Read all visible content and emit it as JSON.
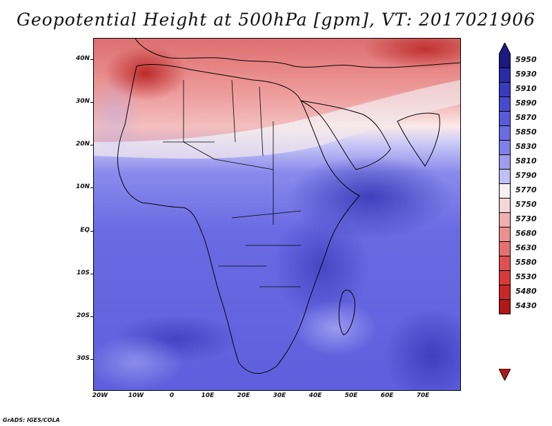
{
  "title": "Geopotential Height at 500hPa [gpm], VT: 2017021906",
  "credit": "GrADS: IGES/COLA",
  "map": {
    "lat_labels": [
      "40N",
      "30N",
      "20N",
      "10N",
      "EQ",
      "10S",
      "20S",
      "30S"
    ],
    "lon_labels": [
      "20W",
      "10W",
      "0",
      "10E",
      "20E",
      "30E",
      "40E",
      "50E",
      "60E",
      "70E"
    ]
  },
  "colorbar": {
    "levels": [
      "5950",
      "5930",
      "5910",
      "5890",
      "5870",
      "5850",
      "5830",
      "5810",
      "5790",
      "5770",
      "5750",
      "5730",
      "5680",
      "5630",
      "5580",
      "5530",
      "5480",
      "5430"
    ],
    "colors": [
      "#1a1a80",
      "#2a2aa8",
      "#3a3ac0",
      "#4a4ad0",
      "#5a5adc",
      "#6b6be3",
      "#8080ea",
      "#9c9cf0",
      "#c0c0f7",
      "#f6f0f0",
      "#f5d6d6",
      "#f0b0b0",
      "#eb9090",
      "#e67070",
      "#e05050",
      "#d83a3a",
      "#c82828",
      "#b01818"
    ]
  }
}
